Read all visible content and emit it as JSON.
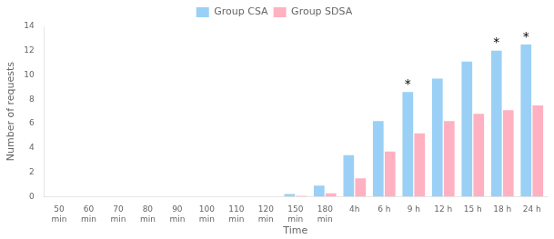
{
  "chart_data": {
    "type": "bar",
    "categories": [
      "50\nmin",
      "60\nmin",
      "70\nmin",
      "80\nmin",
      "90\nmin",
      "100\nmin",
      "110\nmin",
      "120\nmin",
      "150\nmin",
      "180\nmin",
      "4h",
      "6 h",
      "9 h",
      "12 h",
      "15 h",
      "18 h",
      "24 h"
    ],
    "series": [
      {
        "name": "Group CSA",
        "values": [
          0,
          0,
          0,
          0,
          0,
          0,
          0,
          0,
          0.2,
          0.9,
          3.4,
          6.2,
          8.6,
          9.7,
          11.1,
          12.0,
          12.5
        ]
      },
      {
        "name": "Group SDSA",
        "values": [
          0,
          0,
          0,
          0,
          0,
          0,
          0,
          0,
          0.05,
          0.25,
          1.5,
          3.7,
          5.2,
          6.2,
          6.8,
          7.1,
          7.5
        ]
      }
    ],
    "xlabel": "Time",
    "ylabel": "Number of requests",
    "ylim": [
      0,
      14
    ],
    "yticks": [
      0,
      2,
      4,
      6,
      8,
      10,
      12,
      14
    ],
    "annotations": [
      {
        "text": "*",
        "x": "9 h",
        "series": "Group CSA"
      },
      {
        "text": "*",
        "x": "18 h",
        "series": "Group CSA"
      },
      {
        "text": "*",
        "x": "24 h",
        "series": "Group CSA"
      }
    ],
    "grid": false,
    "legend": "top"
  }
}
